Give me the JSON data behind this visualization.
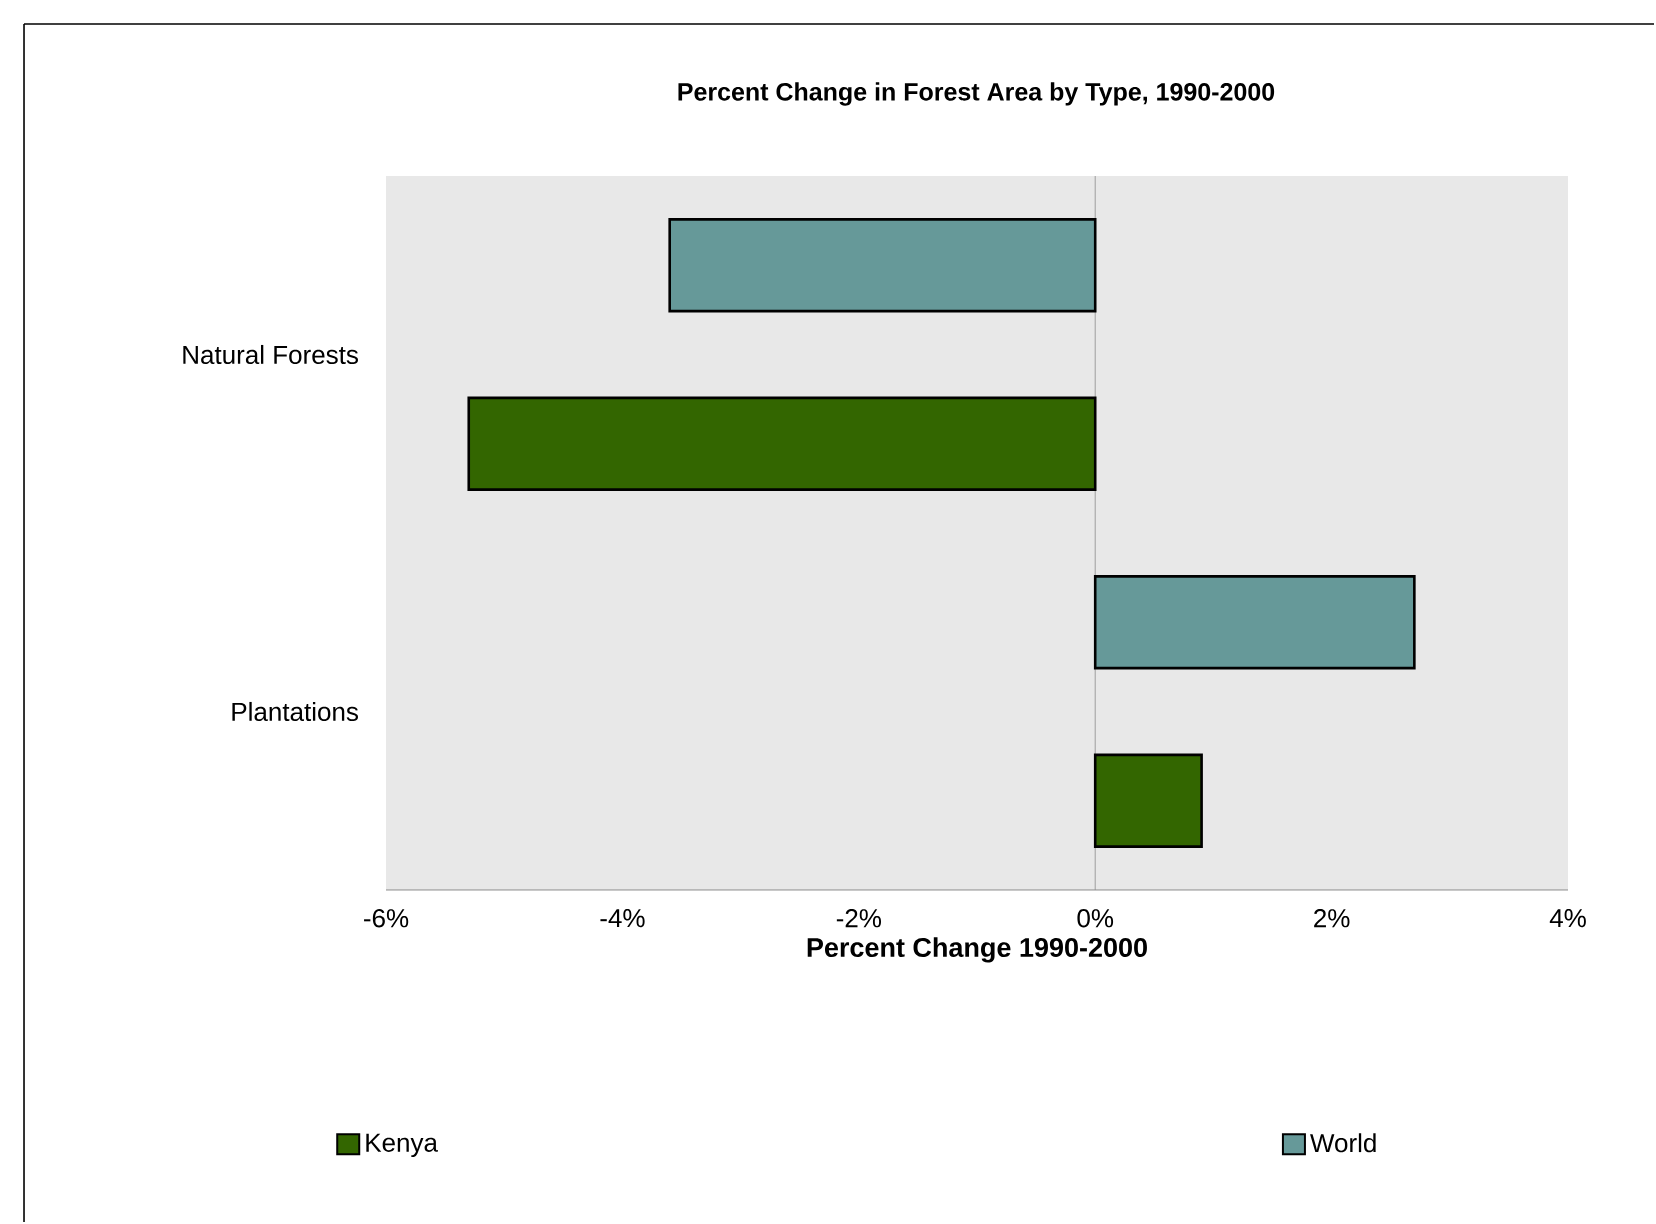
{
  "chart_data": {
    "type": "bar",
    "orientation": "horizontal",
    "title": "Percent Change in Forest Area by Type, 1990-2000",
    "xlabel": "Percent Change 1990-2000",
    "categories": [
      "Natural Forests",
      "Plantations"
    ],
    "series": [
      {
        "name": "Kenya",
        "color": "#336600",
        "values": [
          -5.3,
          0.9
        ]
      },
      {
        "name": "World",
        "color": "#669999",
        "values": [
          -3.6,
          2.7
        ]
      }
    ],
    "xlim": [
      -6,
      4
    ],
    "xticks": [
      {
        "value": -6,
        "label": "-6%"
      },
      {
        "value": -4,
        "label": "-4%"
      },
      {
        "value": -2,
        "label": "-2%"
      },
      {
        "value": 0,
        "label": "0%"
      },
      {
        "value": 2,
        "label": "2%"
      },
      {
        "value": 4,
        "label": "4%"
      }
    ],
    "ref_lines": [
      {
        "axis": "x",
        "value": 0,
        "color": "#8c8c8c"
      }
    ],
    "legend": "bottom"
  }
}
